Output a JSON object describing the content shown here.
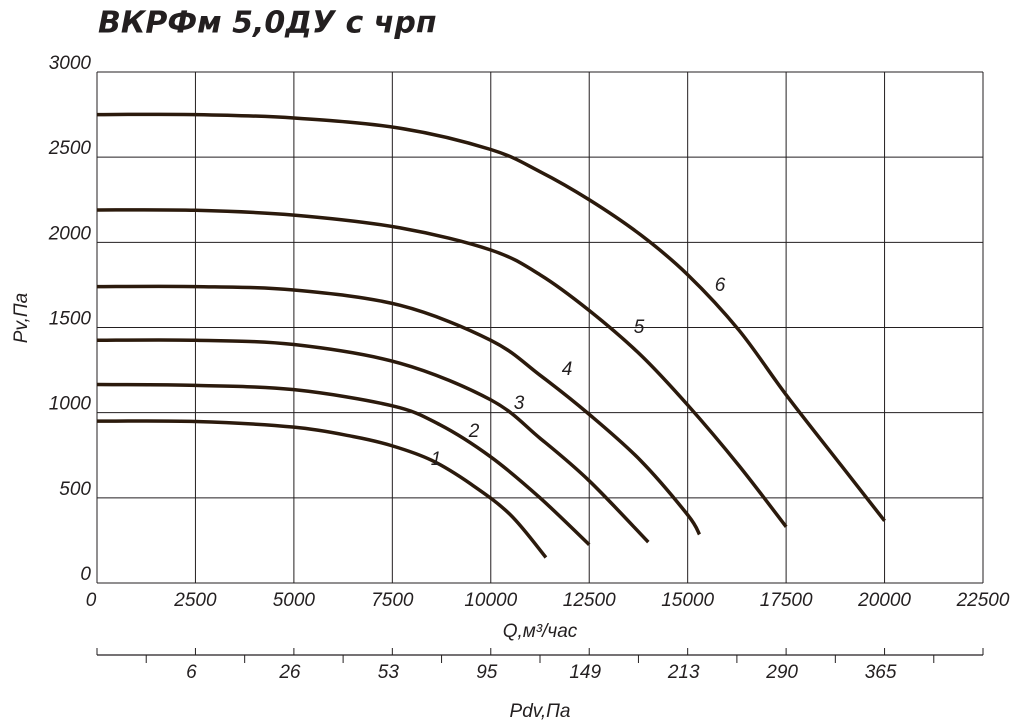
{
  "chart_data": {
    "type": "line",
    "title": "ВКРФм 5,0ДУ с чрп",
    "ylabel": "Pv,Па",
    "xlabel": "Q,м³/час",
    "x2label": "Pdv,Па",
    "xlim": [
      0,
      22500
    ],
    "xticks": [
      0,
      2500,
      5000,
      7500,
      10000,
      12500,
      15000,
      17500,
      20000,
      22500
    ],
    "ylim": [
      0,
      3000
    ],
    "yticks": [
      0,
      500,
      1000,
      1500,
      2000,
      2500,
      3000
    ],
    "pdv_labels": [
      6,
      26,
      53,
      95,
      149,
      213,
      290,
      365
    ],
    "grid": true,
    "color": "#2b1a0c",
    "series": [
      {
        "name": "1",
        "x": [
          0,
          2500,
          5000,
          6500,
          7500,
          8500,
          9500,
          10500,
          11400
        ],
        "values": [
          950,
          948,
          915,
          860,
          805,
          720,
          580,
          400,
          150
        ]
      },
      {
        "name": "2",
        "x": [
          0,
          2500,
          5000,
          7500,
          8700,
          10000,
          11250,
          12500
        ],
        "values": [
          1165,
          1160,
          1135,
          1040,
          930,
          740,
          500,
          225
        ]
      },
      {
        "name": "3",
        "x": [
          0,
          2500,
          5000,
          7700,
          10000,
          11250,
          12500,
          14000
        ],
        "values": [
          1425,
          1425,
          1400,
          1290,
          1075,
          850,
          600,
          240
        ]
      },
      {
        "name": "4",
        "x": [
          0,
          2500,
          5000,
          7700,
          10000,
          11250,
          12500,
          13800,
          15000,
          15300
        ],
        "values": [
          1740,
          1740,
          1720,
          1630,
          1425,
          1220,
          990,
          720,
          400,
          285
        ]
      },
      {
        "name": "5",
        "x": [
          0,
          2500,
          5000,
          7700,
          10000,
          11250,
          12500,
          13800,
          15000,
          16300,
          17500
        ],
        "values": [
          2190,
          2188,
          2160,
          2085,
          1955,
          1810,
          1600,
          1340,
          1045,
          690,
          330
        ]
      },
      {
        "name": "6",
        "x": [
          0,
          2500,
          5000,
          7700,
          10000,
          11250,
          12500,
          13800,
          15000,
          16300,
          17500,
          18900,
          20000
        ],
        "values": [
          2750,
          2750,
          2730,
          2670,
          2545,
          2415,
          2250,
          2045,
          1810,
          1485,
          1105,
          690,
          365
        ]
      }
    ]
  }
}
